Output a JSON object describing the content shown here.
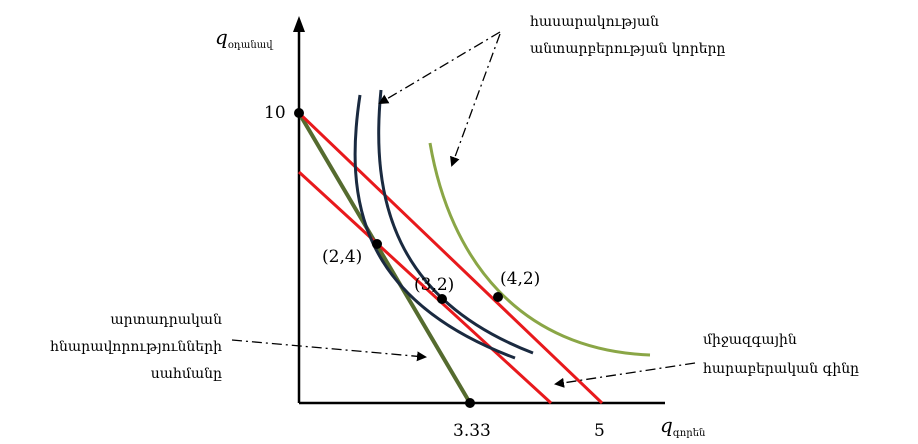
{
  "axes": {
    "y_label_main": "q",
    "y_label_sub": "օդանավ",
    "x_label_main": "q",
    "x_label_sub": "գորեն",
    "y_tick_10": "10",
    "x_tick_333": "3.33",
    "x_tick_5": "5"
  },
  "points": {
    "p24": "(2,4)",
    "p32": "(3,2)",
    "p42": "(4,2)"
  },
  "annotations": {
    "indiff_line1": "հասարակության",
    "indiff_line2": "անտարբերության կորերը",
    "ppf_line1": "արտադրական",
    "ppf_line2": "հնարավորությունների",
    "ppf_line3": "սահմանը",
    "price_line1": "միջազգային",
    "price_line2": "հարաբերական գինը"
  },
  "colors": {
    "ppf": "#556b2f",
    "price_lines": "#e8191c",
    "indifference_dark": "#1a2a40",
    "indifference_light": "#8aa646",
    "axes": "#000000"
  }
}
